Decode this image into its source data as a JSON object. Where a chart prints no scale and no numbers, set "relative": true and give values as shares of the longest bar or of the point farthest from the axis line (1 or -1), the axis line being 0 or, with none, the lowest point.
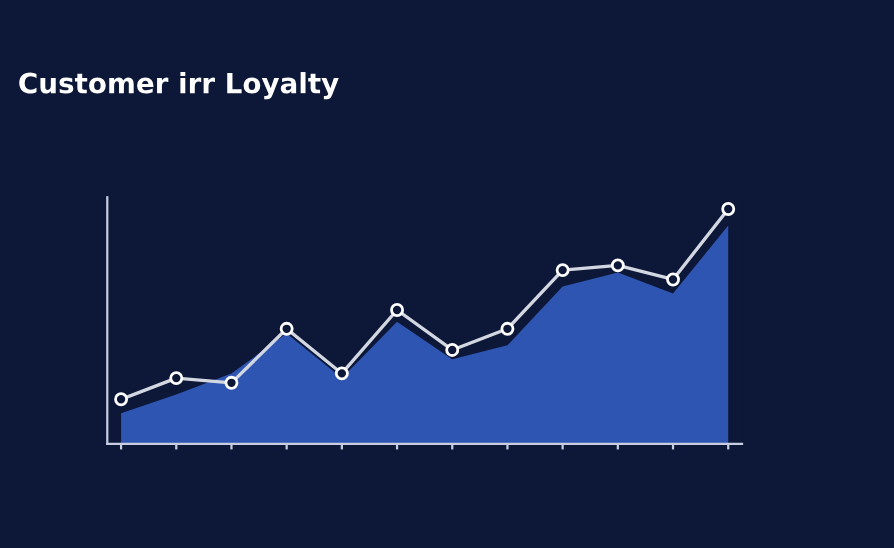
{
  "chart_data": {
    "type": "area",
    "title": "Customer irr Loyalty",
    "relative": true,
    "categories": [
      null,
      null,
      null,
      null,
      null,
      null,
      null,
      null,
      null,
      null,
      null,
      null
    ],
    "series": [
      {
        "color": "#2f55b3",
        "values": [
          0.13,
          0.21,
          0.3,
          0.47,
          0.28,
          0.52,
          0.36,
          0.42,
          0.67,
          0.73,
          0.64,
          0.93
        ]
      },
      {
        "type": "line",
        "marker": "circle",
        "color": "#d3d7e2",
        "values": [
          0.19,
          0.28,
          0.26,
          0.49,
          0.3,
          0.57,
          0.4,
          0.49,
          0.74,
          0.76,
          0.7,
          1.0
        ]
      }
    ],
    "line_style": "solid"
  }
}
